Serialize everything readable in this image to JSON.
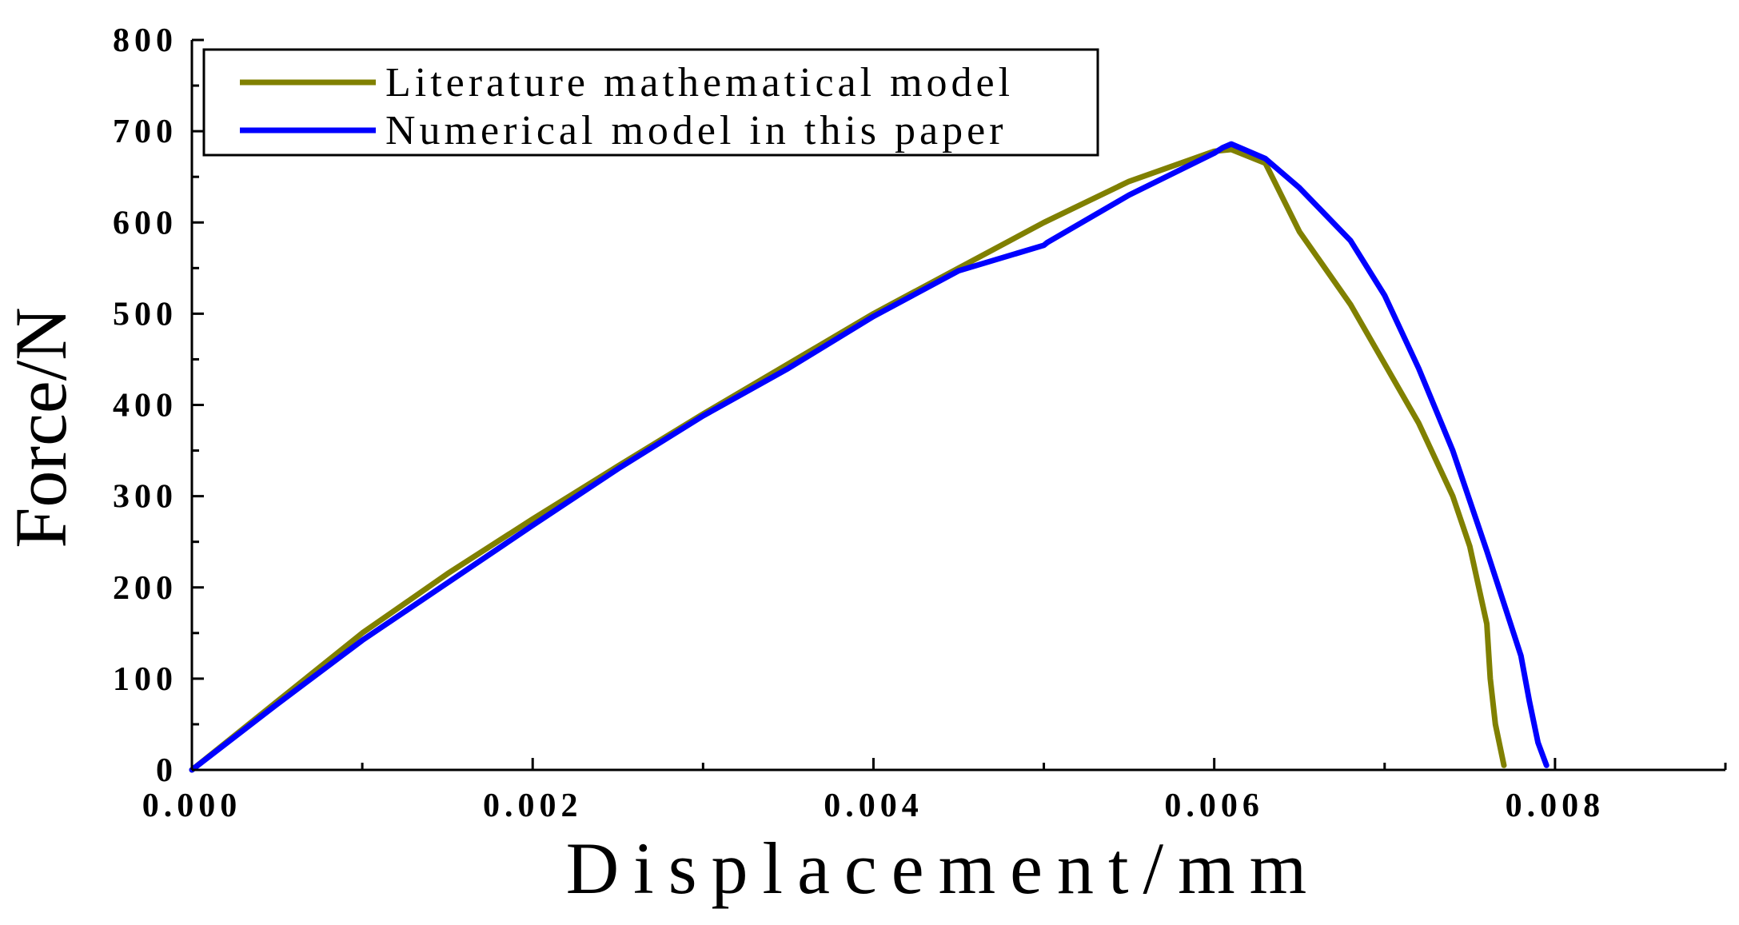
{
  "chart_data": {
    "type": "line",
    "title": "",
    "xlabel": "Displacement/mm",
    "ylabel": "Force/N",
    "xlim": [
      0,
      0.009
    ],
    "ylim": [
      0,
      800
    ],
    "x_ticks": [
      "0.000",
      "0.002",
      "0.004",
      "0.006",
      "0.008"
    ],
    "y_ticks": [
      "0",
      "100",
      "200",
      "300",
      "400",
      "500",
      "600",
      "700",
      "800"
    ],
    "grid": false,
    "legend_position": "top-left",
    "series": [
      {
        "name": "Literature mathematical model",
        "color": "#808000",
        "x": [
          0,
          0.0005,
          0.001,
          0.0015,
          0.002,
          0.0025,
          0.003,
          0.0035,
          0.004,
          0.0045,
          0.005,
          0.0055,
          0.006,
          0.0061,
          0.0063,
          0.0065,
          0.0068,
          0.007,
          0.0072,
          0.0074,
          0.0075,
          0.0076,
          0.00762,
          0.00765,
          0.0077
        ],
        "y": [
          0,
          75,
          150,
          215,
          275,
          333,
          390,
          445,
          500,
          550,
          600,
          645,
          678,
          680,
          665,
          590,
          510,
          445,
          380,
          300,
          245,
          160,
          100,
          50,
          5
        ]
      },
      {
        "name": "Numerical model in this paper",
        "color": "#0000ff",
        "x": [
          0,
          0.0005,
          0.001,
          0.0015,
          0.002,
          0.0025,
          0.003,
          0.0035,
          0.004,
          0.0045,
          0.005,
          0.00502,
          0.0055,
          0.006,
          0.00605,
          0.0061,
          0.0063,
          0.0065,
          0.0068,
          0.007,
          0.0072,
          0.0074,
          0.0076,
          0.0078,
          0.00785,
          0.0079,
          0.00795
        ],
        "y": [
          0,
          72,
          142,
          205,
          268,
          330,
          388,
          440,
          497,
          547,
          575,
          578,
          630,
          676,
          682,
          686,
          670,
          638,
          580,
          520,
          440,
          350,
          240,
          125,
          75,
          30,
          5
        ]
      }
    ]
  }
}
